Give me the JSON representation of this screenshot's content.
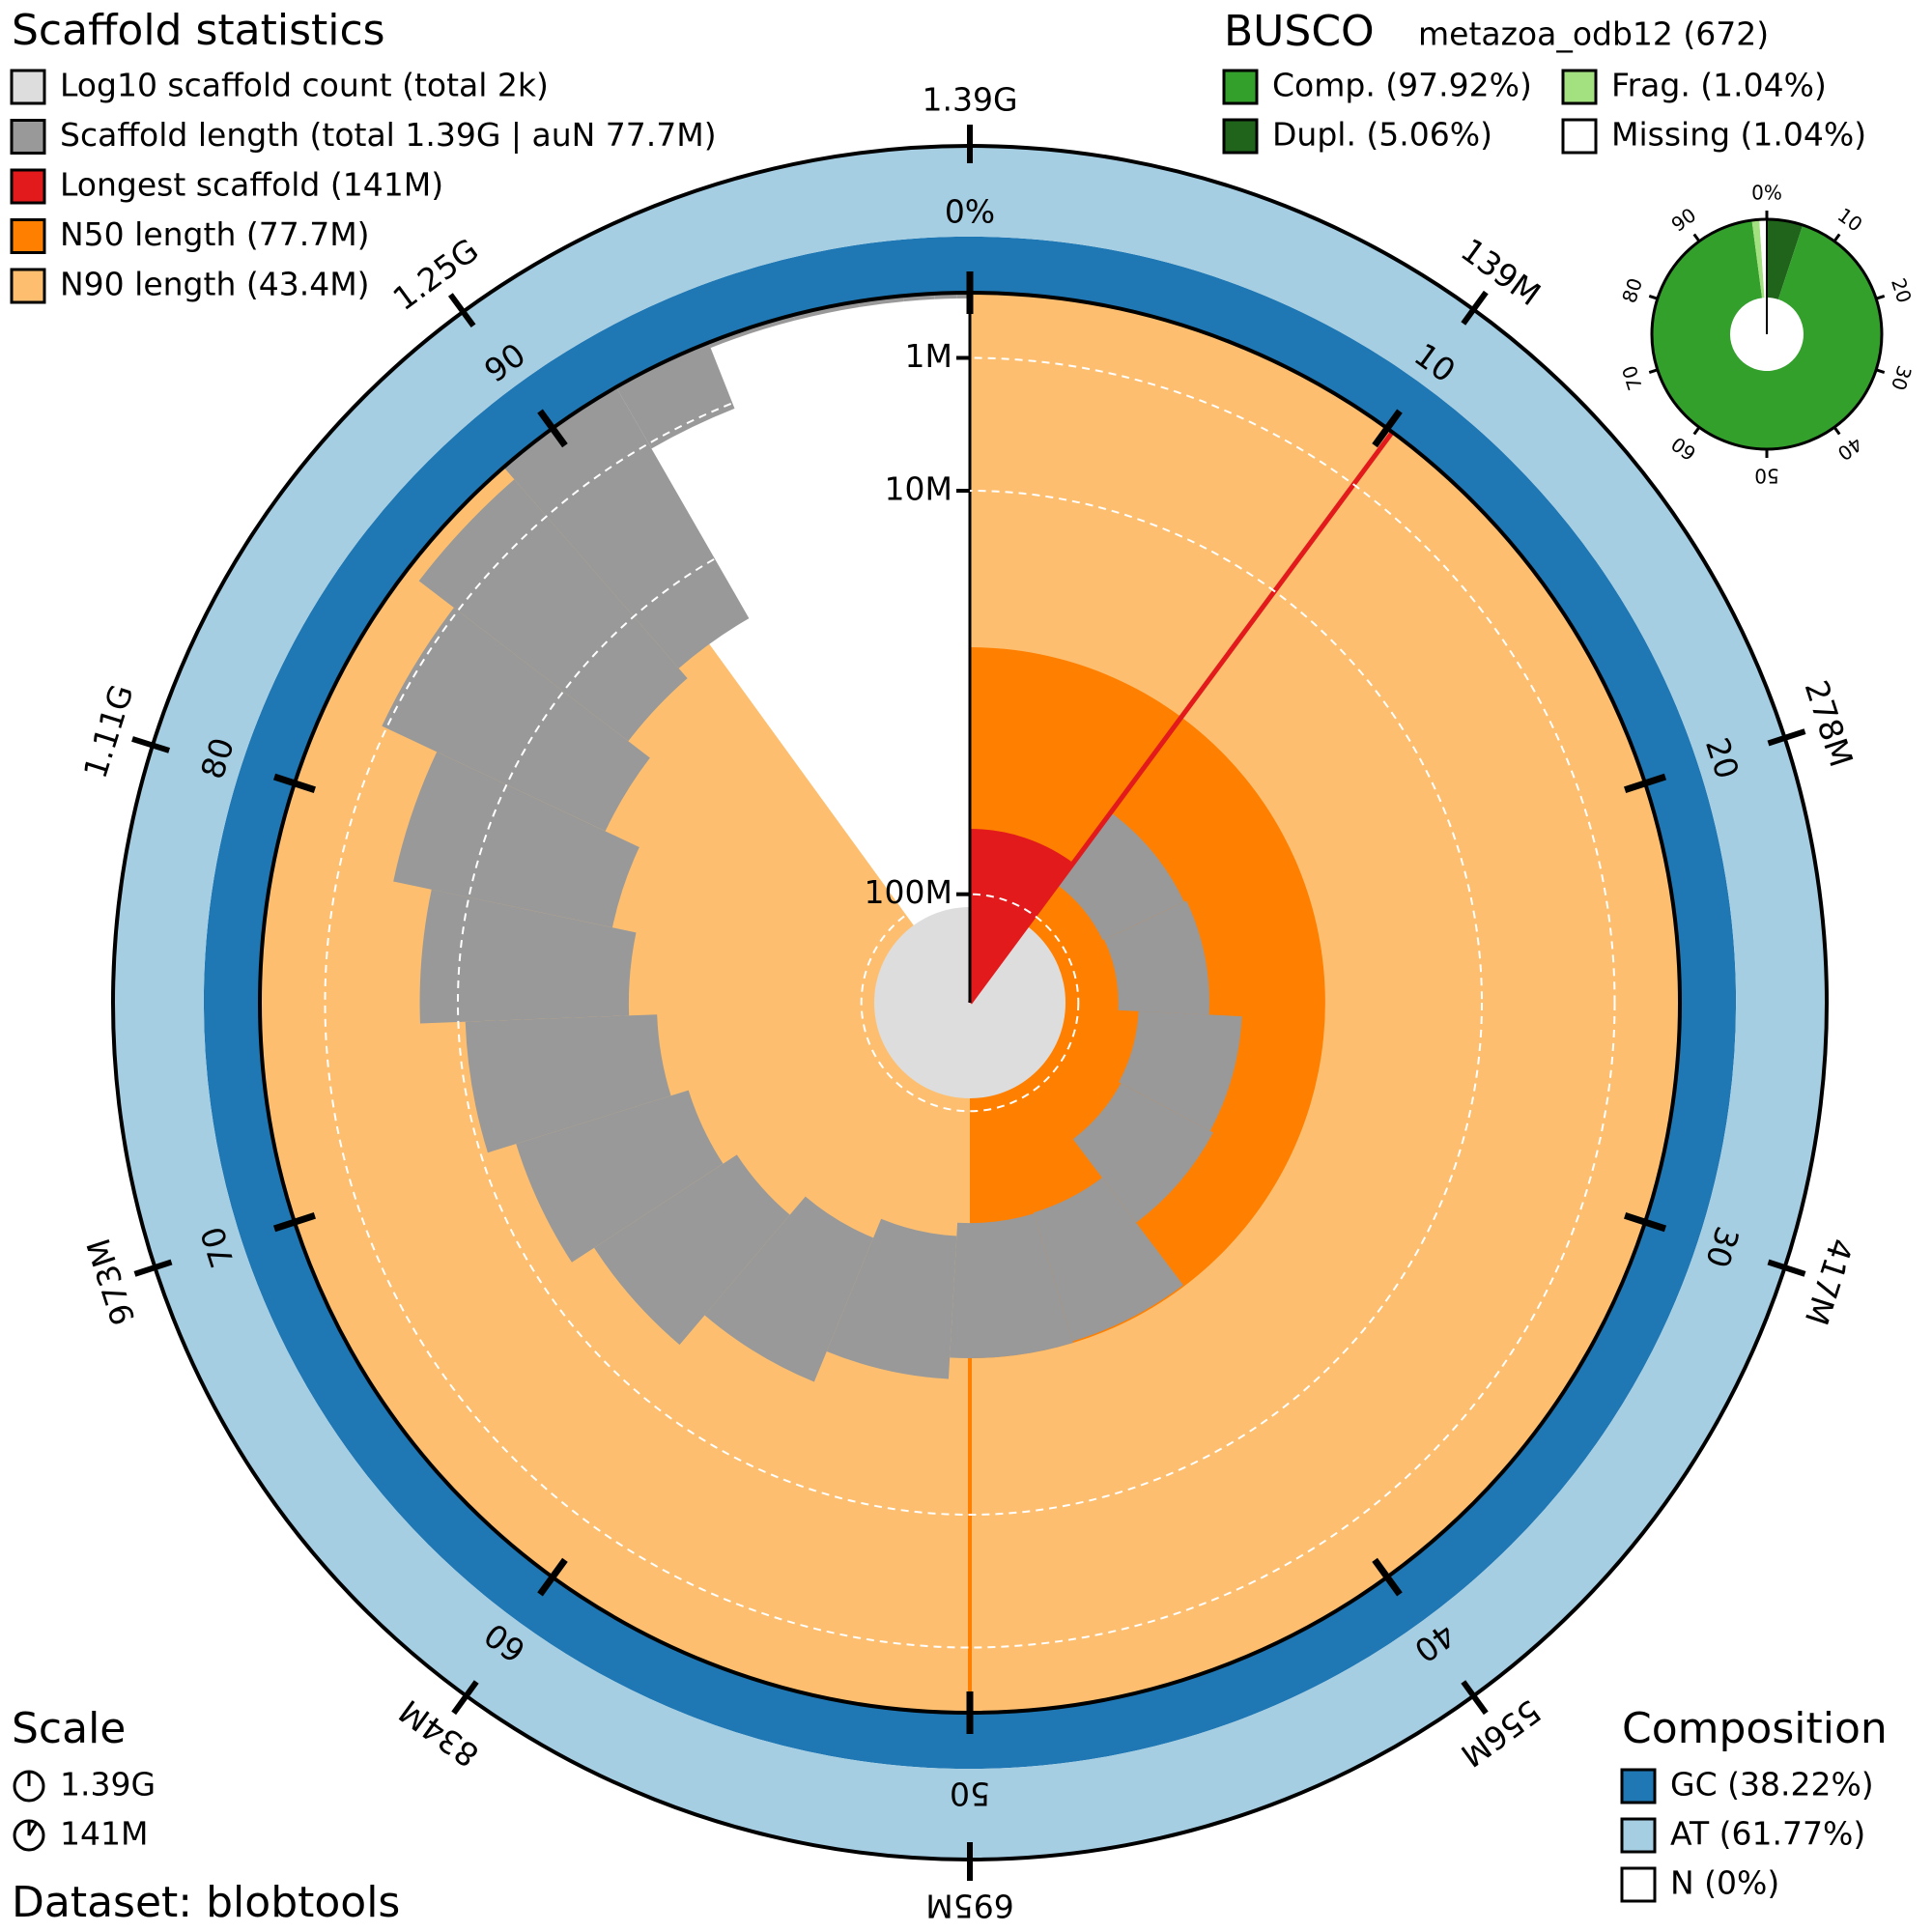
{
  "chart_data": {
    "type": "snail",
    "title": "Scaffold statistics",
    "legend": [
      {
        "label": "Log10 scaffold count (total 2k)",
        "color": "#dddddd"
      },
      {
        "label": "Scaffold length (total 1.39G | auN 77.7M)",
        "color": "#999999"
      },
      {
        "label": "Longest scaffold (141M)",
        "color": "#e31a1c"
      },
      {
        "label": "N50 length (77.7M)",
        "color": "#ff7f00"
      },
      {
        "label": "N90 length (43.4M)",
        "color": "#fdbf6f"
      }
    ],
    "total": 1390,
    "scaffold_count": 2000,
    "longest": 141,
    "n50": 77.7,
    "n90": 43.4,
    "scaffold_percent": [
      10.14,
      18.0,
      25.8,
      32.8,
      39.7,
      45.3,
      50.9,
      56.2,
      61.2,
      65.8,
      70.2,
      74.4,
      78.3,
      82.0,
      85.4,
      88.6,
      91.7,
      94.0,
      96.0,
      97.5,
      98.5,
      99.2,
      99.7,
      100
    ],
    "scaffold_lengths": [
      141,
      109,
      108,
      97,
      96,
      78,
      77.7,
      74,
      69,
      64,
      61,
      58,
      54,
      51,
      47,
      44.5,
      43.4,
      32,
      28,
      20,
      14,
      10,
      6,
      4
    ],
    "outer_ticks": [
      {
        "value": 1390,
        "label": "1.39G"
      },
      {
        "value": 139,
        "label": "139M"
      },
      {
        "value": 278,
        "label": "278M"
      },
      {
        "value": 417,
        "label": "417M"
      },
      {
        "value": 556,
        "label": "556M"
      },
      {
        "value": 695,
        "label": "695M"
      },
      {
        "value": 834,
        "label": "834M"
      },
      {
        "value": 973,
        "label": "973M"
      },
      {
        "value": 1110,
        "label": "1.11G"
      },
      {
        "value": 1250,
        "label": "1.25G"
      }
    ],
    "percent_ticks": [
      {
        "value": 0,
        "label": "0%"
      },
      10,
      20,
      30,
      40,
      50,
      60,
      70,
      80,
      90
    ],
    "radial_ticks": [
      {
        "value": 1,
        "label": "1M"
      },
      {
        "value": 10,
        "label": "10M"
      },
      {
        "value": 100,
        "label": "100M"
      }
    ],
    "busco": {
      "title": "BUSCO",
      "lineage": "metazoa_odb12 (672)",
      "complete": 97.92,
      "duplicated": 5.06,
      "fragmented": 1.04,
      "missing": 1.04,
      "legend": [
        {
          "label": "Comp. (97.92%)",
          "color": "#33a02c"
        },
        {
          "label": "Dupl. (5.06%)",
          "color": "#20641c"
        },
        {
          "label": "Frag. (1.04%)",
          "color": "#a3e07f"
        },
        {
          "label": "Missing (1.04%)",
          "color": "#ffffff"
        }
      ],
      "ticks": [
        {
          "value": 0,
          "label": "0%"
        },
        10,
        20,
        30,
        40,
        50,
        60,
        70,
        80,
        90
      ]
    },
    "composition": {
      "title": "Composition",
      "gc": 38.22,
      "at": 61.77,
      "n": 0,
      "legend": [
        {
          "label": "GC (38.22%)",
          "color": "#1f78b4"
        },
        {
          "label": "AT (61.77%)",
          "color": "#a6cee3"
        },
        {
          "label": "N (0%)",
          "color": "#ffffff"
        }
      ]
    },
    "scale": {
      "title": "Scale",
      "labels": [
        "1.39G",
        "141M"
      ]
    },
    "dataset": "Dataset: blobtools"
  }
}
